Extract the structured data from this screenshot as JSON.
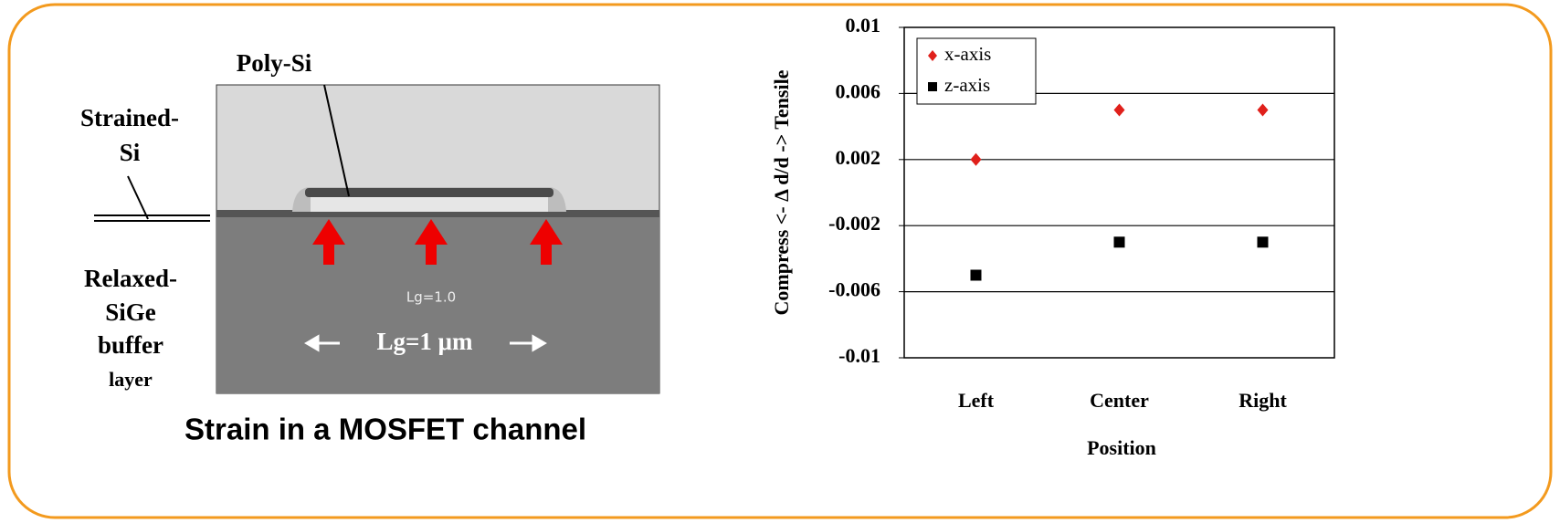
{
  "slide": {
    "caption": "Strain in a MOSFET channel",
    "image_labels": {
      "poly_si": "Poly-Si",
      "strained_si": [
        "Strained-",
        "Si"
      ],
      "relaxed_sige": [
        "Relaxed-",
        "SiGe",
        "buffer",
        "layer"
      ],
      "lg_small": "Lg=1.0",
      "lg": "Lg=1 μm"
    }
  },
  "chart_data": {
    "type": "scatter",
    "y_label": "Compress <- Δ d/d -> Tensile",
    "x_label": "Position",
    "categories": [
      "Left",
      "Center",
      "Right"
    ],
    "series": [
      {
        "name": "x-axis",
        "color": "#e0201b",
        "marker": "diamond",
        "values": [
          0.002,
          0.005,
          0.005
        ]
      },
      {
        "name": "z-axis",
        "color": "#000000",
        "marker": "square",
        "values": [
          -0.005,
          -0.003,
          -0.003
        ]
      }
    ],
    "ylim": [
      -0.01,
      0.01
    ],
    "yticks": [
      0.01,
      0.006,
      0.002,
      -0.002,
      -0.006,
      -0.01
    ],
    "grid": true,
    "legend": "top-left"
  }
}
